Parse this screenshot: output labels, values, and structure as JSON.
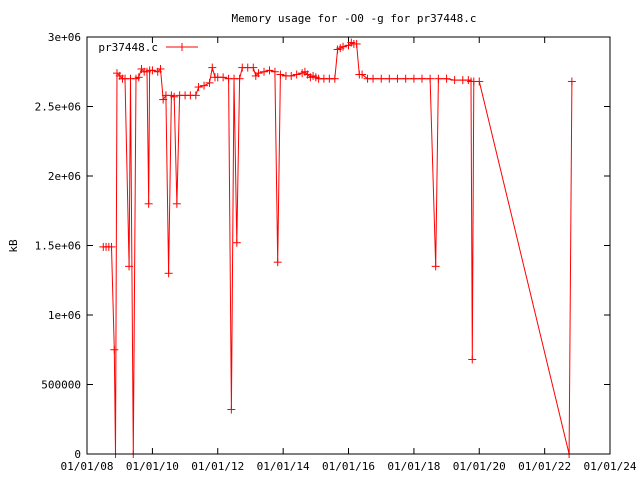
{
  "chart_data": {
    "type": "line",
    "title": "Memory usage for -O0 -g for pr37448.c",
    "xlabel": "",
    "ylabel": "kB",
    "x_axis": {
      "type": "date",
      "min": "2008-01-01",
      "max": "2024-01-01",
      "ticks": [
        {
          "value": "2008-01-01",
          "label": "01/01/08"
        },
        {
          "value": "2010-01-01",
          "label": "01/01/10"
        },
        {
          "value": "2012-01-01",
          "label": "01/01/12"
        },
        {
          "value": "2014-01-01",
          "label": "01/01/14"
        },
        {
          "value": "2016-01-01",
          "label": "01/01/16"
        },
        {
          "value": "2018-01-01",
          "label": "01/01/18"
        },
        {
          "value": "2020-01-01",
          "label": "01/01/20"
        },
        {
          "value": "2022-01-01",
          "label": "01/01/22"
        },
        {
          "value": "2024-01-01",
          "label": "01/01/24"
        }
      ]
    },
    "y_axis": {
      "min": 0,
      "max": 3000000,
      "ticks": [
        {
          "value": 0,
          "label": "0"
        },
        {
          "value": 500000,
          "label": "500000"
        },
        {
          "value": 1000000,
          "label": "1e+06"
        },
        {
          "value": 1500000,
          "label": "1.5e+06"
        },
        {
          "value": 2000000,
          "label": "2e+06"
        },
        {
          "value": 2500000,
          "label": "2.5e+06"
        },
        {
          "value": 3000000,
          "label": "3e+06"
        }
      ]
    },
    "grid": false,
    "legend": {
      "position": "top-left",
      "entries": [
        "pr37448.c"
      ]
    },
    "series": [
      {
        "name": "pr37448.c",
        "color": "#ff0000",
        "marker": "plus",
        "points": [
          [
            "2008-07-01",
            1490000
          ],
          [
            "2008-08-01",
            1490000
          ],
          [
            "2008-09-01",
            1490000
          ],
          [
            "2008-10-01",
            1490000
          ],
          [
            "2008-11-01",
            750000
          ],
          [
            "2008-11-15",
            0
          ],
          [
            "2008-12-01",
            2740000
          ],
          [
            "2009-01-01",
            2720000
          ],
          [
            "2009-02-01",
            2700000
          ],
          [
            "2009-03-01",
            2700000
          ],
          [
            "2009-04-15",
            1350000
          ],
          [
            "2009-05-01",
            2700000
          ],
          [
            "2009-06-01",
            0
          ],
          [
            "2009-07-01",
            2700000
          ],
          [
            "2009-08-01",
            2710000
          ],
          [
            "2009-09-01",
            2770000
          ],
          [
            "2009-10-01",
            2750000
          ],
          [
            "2009-11-01",
            2750000
          ],
          [
            "2009-11-20",
            1800000
          ],
          [
            "2009-12-01",
            2760000
          ],
          [
            "2010-01-01",
            2760000
          ],
          [
            "2010-03-01",
            2750000
          ],
          [
            "2010-04-01",
            2770000
          ],
          [
            "2010-05-01",
            2550000
          ],
          [
            "2010-06-01",
            2580000
          ],
          [
            "2010-07-01",
            1300000
          ],
          [
            "2010-08-01",
            2580000
          ],
          [
            "2010-09-01",
            2570000
          ],
          [
            "2010-10-01",
            1800000
          ],
          [
            "2010-11-01",
            2580000
          ],
          [
            "2011-01-01",
            2580000
          ],
          [
            "2011-03-01",
            2580000
          ],
          [
            "2011-05-01",
            2580000
          ],
          [
            "2011-06-01",
            2640000
          ],
          [
            "2011-08-01",
            2650000
          ],
          [
            "2011-10-01",
            2670000
          ],
          [
            "2011-11-01",
            2780000
          ],
          [
            "2011-12-01",
            2710000
          ],
          [
            "2012-01-01",
            2710000
          ],
          [
            "2012-03-01",
            2710000
          ],
          [
            "2012-05-01",
            2700000
          ],
          [
            "2012-06-01",
            320000
          ],
          [
            "2012-07-01",
            2700000
          ],
          [
            "2012-08-01",
            1520000
          ],
          [
            "2012-09-01",
            2700000
          ],
          [
            "2012-10-01",
            2780000
          ],
          [
            "2012-12-01",
            2780000
          ],
          [
            "2013-02-01",
            2780000
          ],
          [
            "2013-03-01",
            2720000
          ],
          [
            "2013-04-01",
            2740000
          ],
          [
            "2013-06-01",
            2750000
          ],
          [
            "2013-08-01",
            2760000
          ],
          [
            "2013-10-01",
            2750000
          ],
          [
            "2013-11-01",
            1380000
          ],
          [
            "2013-12-01",
            2730000
          ],
          [
            "2014-02-01",
            2720000
          ],
          [
            "2014-04-01",
            2720000
          ],
          [
            "2014-06-01",
            2730000
          ],
          [
            "2014-08-01",
            2740000
          ],
          [
            "2014-09-01",
            2750000
          ],
          [
            "2014-10-01",
            2730000
          ],
          [
            "2014-11-01",
            2710000
          ],
          [
            "2014-12-01",
            2720000
          ],
          [
            "2015-01-01",
            2710000
          ],
          [
            "2015-02-01",
            2700000
          ],
          [
            "2015-04-01",
            2700000
          ],
          [
            "2015-06-01",
            2700000
          ],
          [
            "2015-08-01",
            2700000
          ],
          [
            "2015-09-01",
            2910000
          ],
          [
            "2015-10-01",
            2920000
          ],
          [
            "2015-11-01",
            2930000
          ],
          [
            "2016-01-01",
            2940000
          ],
          [
            "2016-02-01",
            2960000
          ],
          [
            "2016-03-01",
            2950000
          ],
          [
            "2016-04-01",
            2950000
          ],
          [
            "2016-05-01",
            2730000
          ],
          [
            "2016-06-01",
            2730000
          ],
          [
            "2016-08-01",
            2700000
          ],
          [
            "2016-10-01",
            2700000
          ],
          [
            "2017-01-01",
            2700000
          ],
          [
            "2017-04-01",
            2700000
          ],
          [
            "2017-07-01",
            2700000
          ],
          [
            "2017-10-01",
            2700000
          ],
          [
            "2018-01-01",
            2700000
          ],
          [
            "2018-04-01",
            2700000
          ],
          [
            "2018-07-01",
            2700000
          ],
          [
            "2018-09-01",
            1350000
          ],
          [
            "2018-10-01",
            2700000
          ],
          [
            "2019-01-01",
            2700000
          ],
          [
            "2019-04-01",
            2690000
          ],
          [
            "2019-07-01",
            2690000
          ],
          [
            "2019-09-01",
            2690000
          ],
          [
            "2019-10-01",
            2680000
          ],
          [
            "2019-10-15",
            680000
          ],
          [
            "2019-11-01",
            2680000
          ],
          [
            "2020-01-01",
            2680000
          ],
          [
            "2022-10-01",
            0
          ],
          [
            "2022-11-01",
            2680000
          ]
        ]
      }
    ]
  }
}
